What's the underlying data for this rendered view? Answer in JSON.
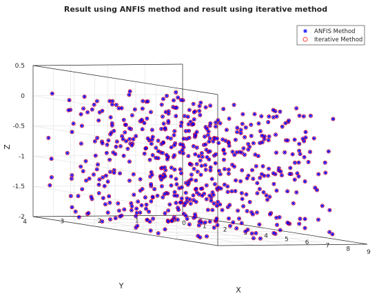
{
  "chart_data": {
    "type": "scatter",
    "dimensions": 3,
    "title": "Result using ANFIS method and result using iterative method",
    "xlabel": "X",
    "ylabel": "Y",
    "zlabel": "Z",
    "xlim": [
      0,
      9
    ],
    "ylim": [
      0,
      4
    ],
    "zlim": [
      -2,
      0.5
    ],
    "xticks": [
      "0",
      "1",
      "2",
      "3",
      "4",
      "5",
      "6",
      "7",
      "8",
      "9"
    ],
    "yticks": [
      "0",
      "1",
      "2",
      "3",
      "4"
    ],
    "zticks": [
      "-2",
      "-1.5",
      "-1",
      "-0.5",
      "0",
      "0.5"
    ],
    "grid": true,
    "legend_position": "top-right",
    "point_count": 600,
    "note": "Both series plot the same points; ANFIS markers coincide with iterative markers. Individual points are dense and not individually labeled; values are approximately uniform over the box X 0–8, Y 0–4, Z -2–0.1.",
    "series": [
      {
        "name": "ANFIS Method",
        "marker": "asterisk",
        "color": "#0000ff"
      },
      {
        "name": "Iterative Method",
        "marker": "circle",
        "color": "#ff0000"
      }
    ]
  }
}
